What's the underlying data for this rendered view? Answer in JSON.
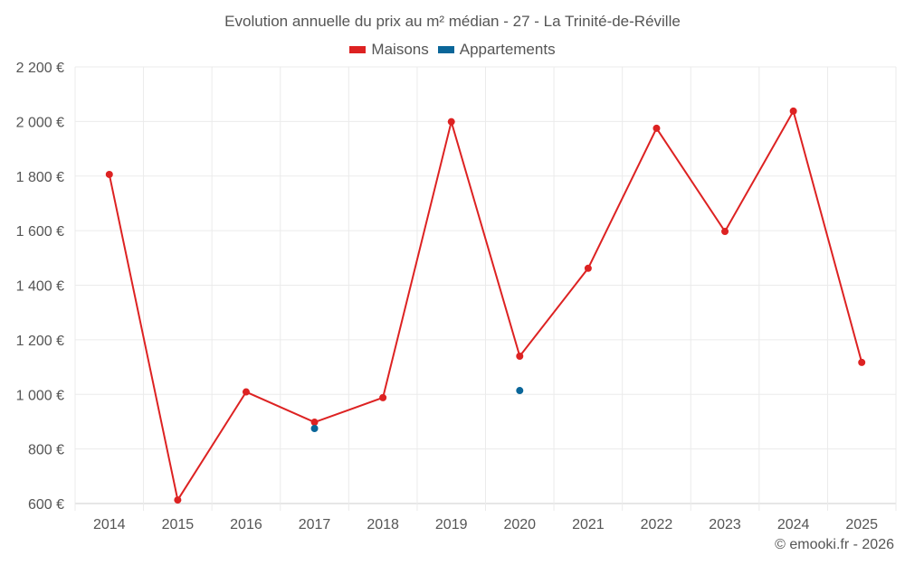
{
  "chart_data": {
    "type": "line",
    "title": "Evolution annuelle du prix au m² médian - 27 - La Trinité-de-Réville",
    "categories": [
      "2014",
      "2015",
      "2016",
      "2017",
      "2018",
      "2019",
      "2020",
      "2021",
      "2022",
      "2023",
      "2024",
      "2025"
    ],
    "series": [
      {
        "name": "Maisons",
        "color": "#dd2222",
        "values": [
          1806,
          613,
          1009,
          898,
          988,
          1999,
          1140,
          1462,
          1975,
          1597,
          2038,
          1117
        ]
      },
      {
        "name": "Appartements",
        "color": "#0a6699",
        "values": [
          null,
          null,
          null,
          875,
          null,
          null,
          1014,
          null,
          null,
          null,
          null,
          null
        ]
      }
    ],
    "ylim": [
      600,
      2200
    ],
    "yticks": [
      600,
      800,
      1000,
      1200,
      1400,
      1600,
      1800,
      2000,
      2200
    ],
    "ytick_labels": [
      "600 €",
      "800 €",
      "1 000 €",
      "1 200 €",
      "1 400 €",
      "1 600 €",
      "1 800 €",
      "2 000 €",
      "2 200 €"
    ],
    "grid": true,
    "legend": "top-center"
  },
  "credit": "© emooki.fr - 2026"
}
